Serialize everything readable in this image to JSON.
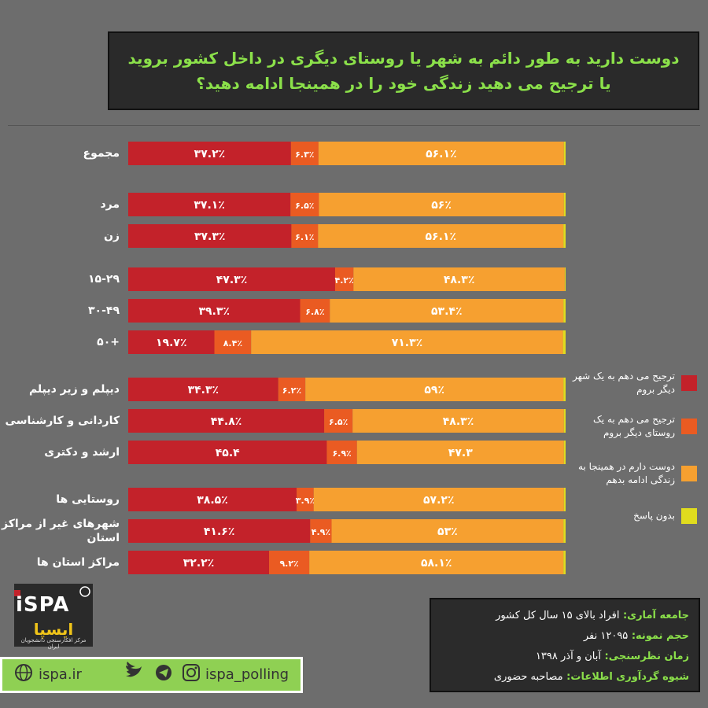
{
  "title": "دوست دارید به طور دائم به شهر یا روستای دیگری در داخل کشور بروید یا ترجیح می دهید زندگی خود را در همینجا ادامه دهید؟",
  "colors": {
    "city": "#c3222a",
    "village": "#ea5b22",
    "stay": "#f6a030",
    "noanswer": "#e0dc1e",
    "background": "#6d6d6d"
  },
  "chart_data": {
    "type": "bar",
    "orientation": "horizontal",
    "stacked": true,
    "legend_position": "right",
    "grid": false,
    "series": [
      {
        "name": "ترجیح می دهم به یک شهر دیگر بروم",
        "values": [
          37.2,
          37.1,
          37.3,
          47.3,
          39.3,
          19.7,
          34.3,
          44.8,
          45.4,
          38.5,
          41.6,
          32.2
        ]
      },
      {
        "name": "ترجیح می دهم به یک روستای دیگر بروم",
        "values": [
          6.3,
          6.5,
          6.1,
          4.2,
          6.8,
          8.4,
          6.2,
          6.5,
          6.9,
          3.9,
          4.9,
          9.2
        ]
      },
      {
        "name": "دوست دارم در همینجا به زندگی ادامه بدهم",
        "values": [
          56.1,
          56,
          56.1,
          48.3,
          53.4,
          71.3,
          59,
          48.3,
          47.3,
          57.2,
          53,
          58.1
        ]
      },
      {
        "name": "بدون پاسخ",
        "values": [
          0.4,
          0.4,
          0.5,
          0.2,
          0.5,
          0.6,
          0.5,
          0.4,
          0.4,
          0.4,
          0.5,
          0.5
        ]
      }
    ],
    "categories": [
      "مجموع",
      "مرد",
      "زن",
      "۱۵-۲۹",
      "۳۰-۴۹",
      "+۵۰",
      "دیپلم و زیر دیپلم",
      "کاردانی و کارشناسی",
      "ارشد و دکتری",
      "روستایی ها",
      "شهرهای غیر از مراکز استان",
      "مراکز استان ها"
    ],
    "value_labels": [
      [
        "۳۷.۲٪",
        "۳۷.۱٪",
        "۳۷.۳٪",
        "۴۷.۳٪",
        "۳۹.۳٪",
        "۱۹.۷٪",
        "۳۴.۳٪",
        "۴۴.۸٪",
        "۴۵.۴",
        "۳۸.۵٪",
        "۴۱.۶٪",
        "۳۲.۲٪"
      ],
      [
        "۶.۳٪",
        "۶.۵٪",
        "۶.۱٪",
        "۴.۲٪",
        "۶.۸٪",
        "۸.۴٪",
        "۶.۲٪",
        "۶.۵٪",
        "۶.۹٪",
        "۳.۹٪",
        "۴.۹٪",
        "۹.۲٪"
      ],
      [
        "۵۶.۱٪",
        "۵۶٪",
        "۵۶.۱٪",
        "۴۸.۳٪",
        "۵۳.۴٪",
        "۷۱.۳٪",
        "۵۹٪",
        "۴۸.۳٪",
        "۴۷.۳",
        "۵۷.۲٪",
        "۵۳٪",
        "۵۸.۱٪"
      ]
    ]
  },
  "logo": {
    "text": "iSPA",
    "sub": "ایسپا",
    "caption": "مرکز افکارسنجی دانشجویان ایران"
  },
  "social": {
    "site": "ispa.ir",
    "handle": "ispa_polling"
  },
  "info": [
    {
      "key": "جامعه آماری:",
      "value": "افراد بالای ۱۵ سال کل کشور"
    },
    {
      "key": "حجم نمونه:",
      "value": "۱۲۰۹۵ نفر"
    },
    {
      "key": "زمان نظرسنجی:",
      "value": "آبان و آذر ۱۳۹۸"
    },
    {
      "key": "شیوه گردآوری اطلاعات:",
      "value": "مصاحبه حضوری"
    }
  ]
}
